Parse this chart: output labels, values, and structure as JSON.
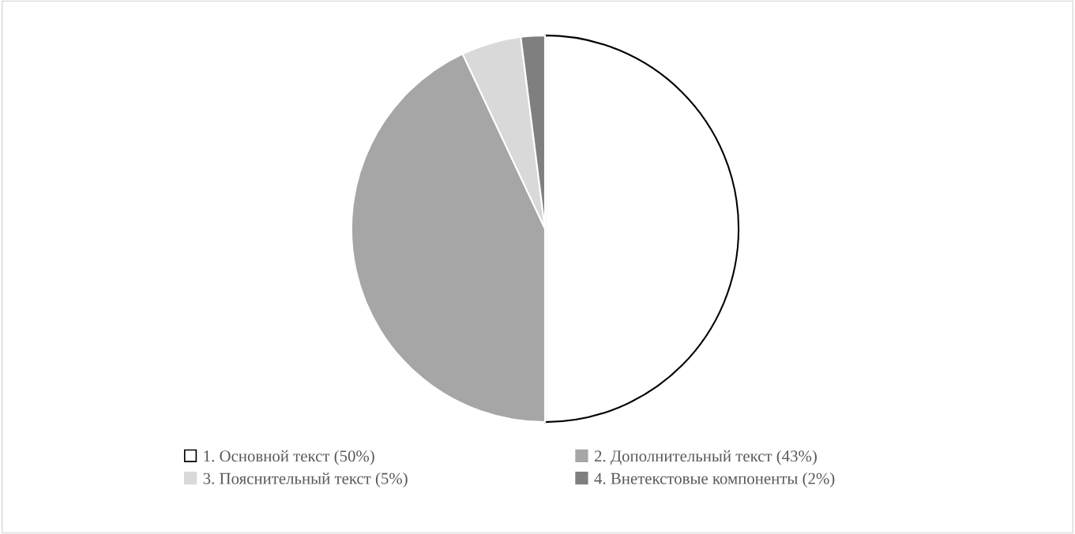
{
  "chart_data": {
    "type": "pie",
    "categories": [
      "1. Основной текст (50%)",
      "2. Дополнительный текст (43%)",
      "3. Пояснительный текст (5%)",
      "4. Внетекстовые компоненты (2%)"
    ],
    "values": [
      50,
      43,
      5,
      2
    ],
    "colors": [
      "#ffffff",
      "#a6a6a6",
      "#d9d9d9",
      "#7f7f7f"
    ],
    "legend": "bottom"
  }
}
